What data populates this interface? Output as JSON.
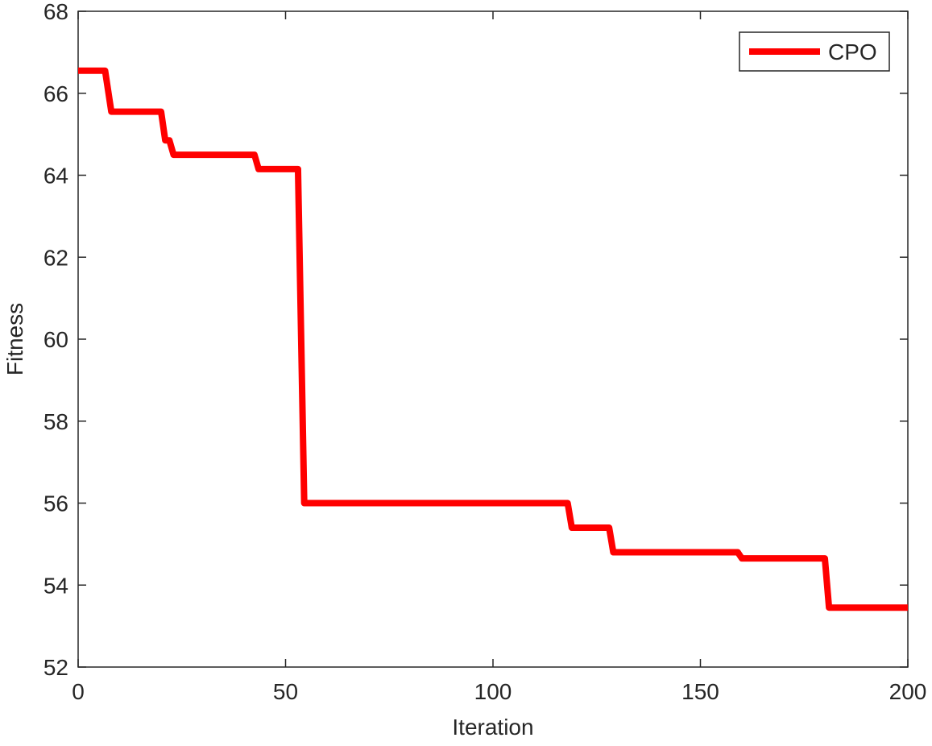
{
  "chart_data": {
    "type": "line",
    "x_label": "Iteration",
    "y_label": "Fitness",
    "x": [
      0,
      6.5,
      8,
      20,
      21,
      22,
      23,
      42.5,
      43.5,
      53,
      54.5,
      118,
      119,
      128,
      129,
      159,
      160,
      180,
      181,
      200
    ],
    "series": [
      {
        "name": "CPO",
        "color": "#ff0000",
        "values": [
          66.55,
          66.55,
          65.55,
          65.55,
          64.85,
          64.85,
          64.5,
          64.5,
          64.15,
          64.15,
          56,
          56,
          55.4,
          55.4,
          54.8,
          54.8,
          54.65,
          54.65,
          53.45,
          53.45
        ]
      }
    ],
    "xlim": [
      0,
      200
    ],
    "xticks": [
      0,
      50,
      100,
      150,
      200
    ],
    "ylim": [
      52,
      68
    ],
    "yticks": [
      52,
      54,
      56,
      58,
      60,
      62,
      64,
      66,
      68
    ],
    "grid": false,
    "legend": "top-right"
  }
}
